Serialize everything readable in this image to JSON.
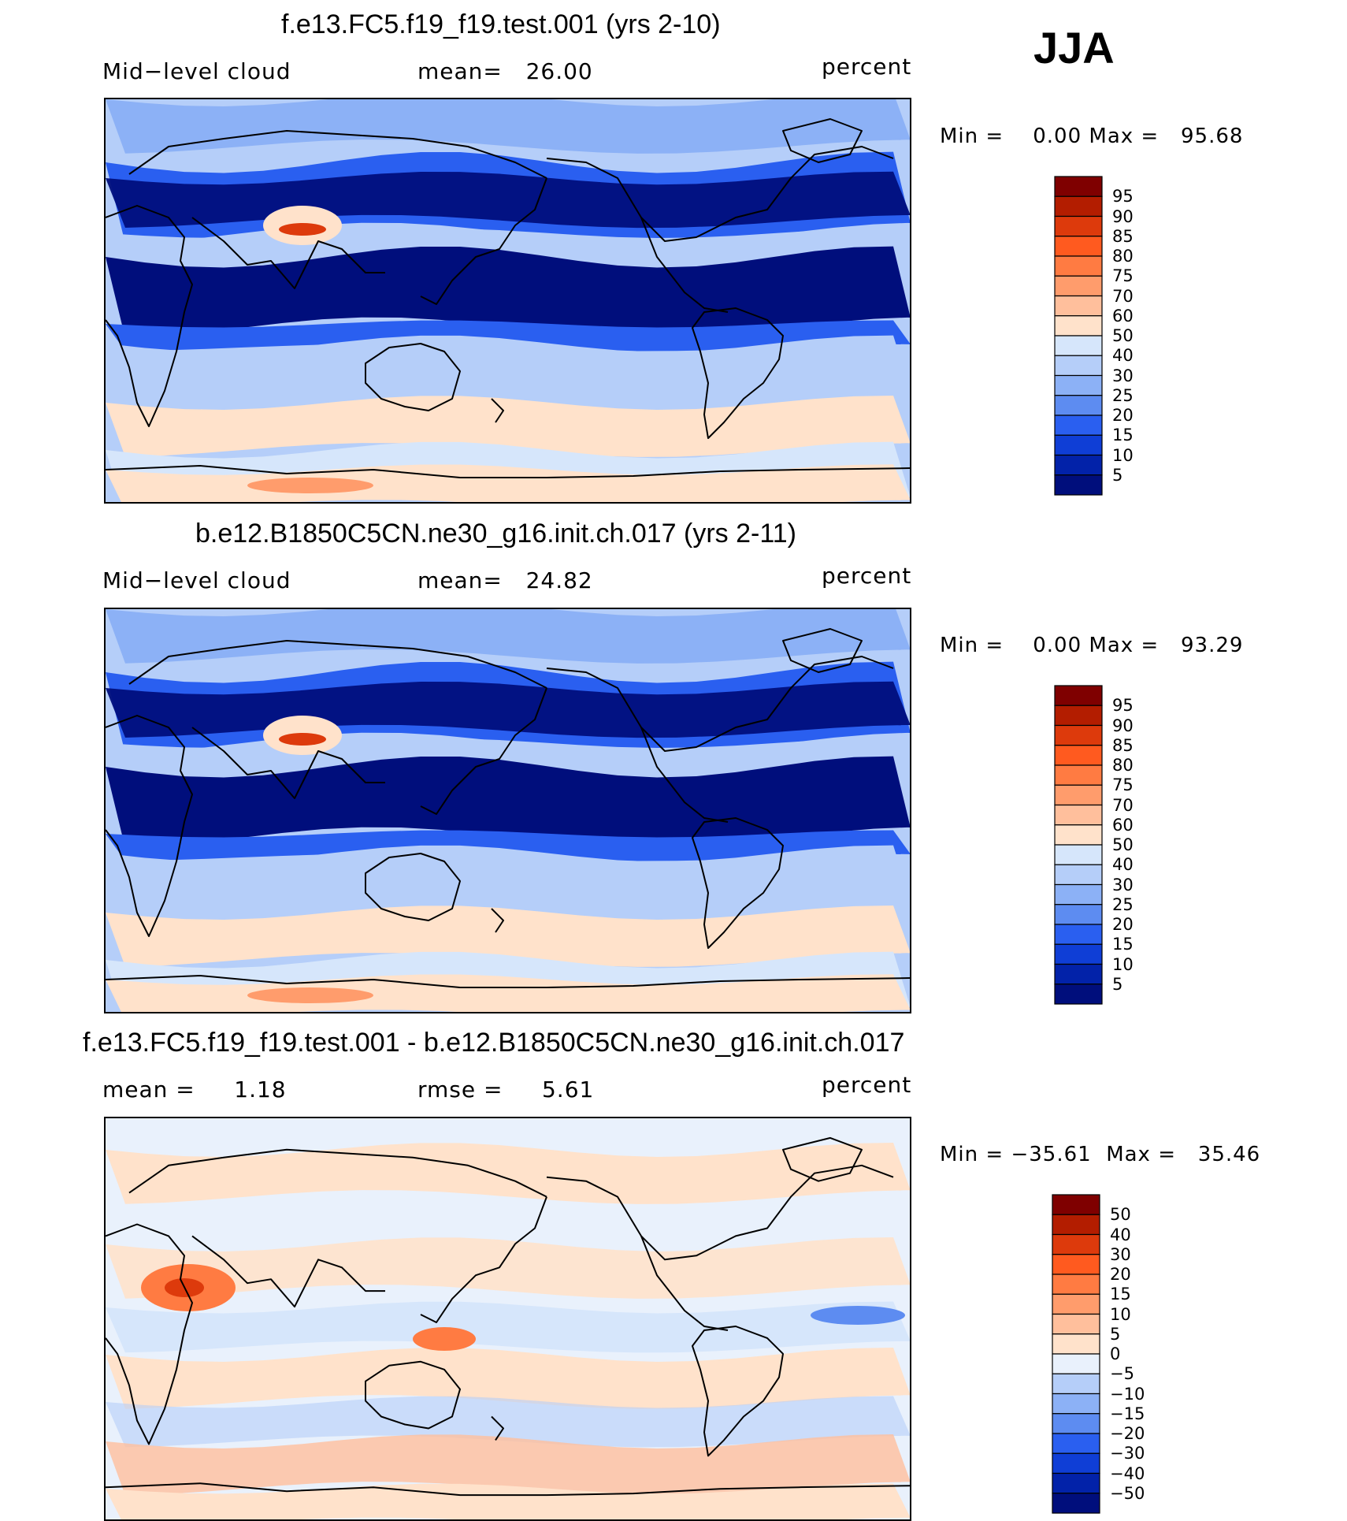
{
  "season": "JJA",
  "panels": [
    {
      "id": "test",
      "title": "f.e13.FC5.f19_f19.test.001 (yrs 2-10)",
      "left_label": "Mid−level cloud",
      "center_label": "mean=   26.00",
      "right_label": "percent",
      "minmax": "Min =    0.00 Max =   95.68",
      "colorbar": {
        "labels": [
          "95",
          "90",
          "85",
          "80",
          "75",
          "70",
          "60",
          "50",
          "40",
          "30",
          "25",
          "20",
          "15",
          "10",
          "5"
        ],
        "colors": [
          "#7f0000",
          "#b31d00",
          "#dd3a0c",
          "#ff5a1f",
          "#ff7b42",
          "#ff9c6c",
          "#ffbf9c",
          "#ffe2cb",
          "#d6e6fb",
          "#b5cef9",
          "#8cb1f6",
          "#5d8cf1",
          "#2a5ff0",
          "#0f3ed6",
          "#0222a9",
          "#000e7c"
        ]
      },
      "palette": "seq"
    },
    {
      "id": "control",
      "title": "b.e12.B1850C5CN.ne30_g16.init.ch.017 (yrs 2-11)",
      "left_label": "Mid−level cloud",
      "center_label": "mean=   24.82",
      "right_label": "percent",
      "minmax": "Min =    0.00 Max =   93.29",
      "colorbar": {
        "labels": [
          "95",
          "90",
          "85",
          "80",
          "75",
          "70",
          "60",
          "50",
          "40",
          "30",
          "25",
          "20",
          "15",
          "10",
          "5"
        ],
        "colors": [
          "#7f0000",
          "#b31d00",
          "#dd3a0c",
          "#ff5a1f",
          "#ff7b42",
          "#ff9c6c",
          "#ffbf9c",
          "#ffe2cb",
          "#d6e6fb",
          "#b5cef9",
          "#8cb1f6",
          "#5d8cf1",
          "#2a5ff0",
          "#0f3ed6",
          "#0222a9",
          "#000e7c"
        ]
      },
      "palette": "seq"
    },
    {
      "id": "diff",
      "title": "f.e13.FC5.f19_f19.test.001 - b.e12.B1850C5CN.ne30_g16.init.ch.017",
      "left_label": "mean =     1.18",
      "center_label": "rmse =     5.61",
      "right_label": "percent",
      "minmax": "Min = −35.61  Max =   35.46",
      "colorbar": {
        "labels": [
          "50",
          "40",
          "30",
          "20",
          "15",
          "10",
          "5",
          "0",
          "−5",
          "−10",
          "−15",
          "−20",
          "−30",
          "−40",
          "−50"
        ],
        "colors": [
          "#7f0000",
          "#b31d00",
          "#dd3a0c",
          "#ff5a1f",
          "#ff7b42",
          "#ff9c6c",
          "#ffbf9c",
          "#ffe2cb",
          "#e9f1fc",
          "#b5cef9",
          "#8cb1f6",
          "#5d8cf1",
          "#2a5ff0",
          "#0f3ed6",
          "#0222a9",
          "#000e7c"
        ]
      },
      "palette": "div"
    }
  ]
}
